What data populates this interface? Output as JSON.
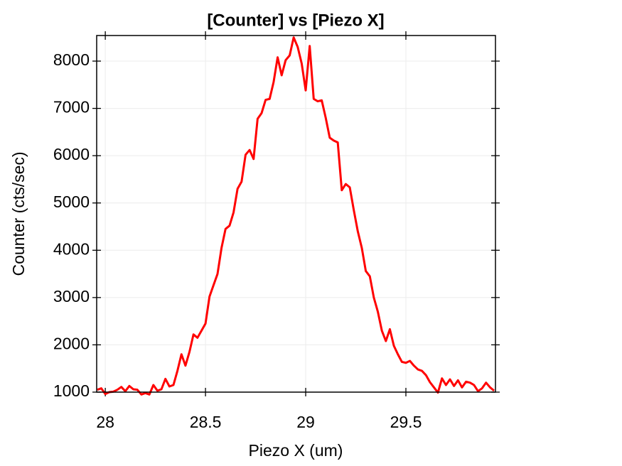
{
  "chart_data": {
    "type": "line",
    "title": "[Counter] vs [Piezo X]",
    "xlabel": "Piezo X (um)",
    "ylabel": "Counter (cts/sec)",
    "x": [
      27.96,
      27.98,
      28.0,
      28.02,
      28.04,
      28.06,
      28.08,
      28.1,
      28.12,
      28.14,
      28.16,
      28.18,
      28.2,
      28.22,
      28.24,
      28.26,
      28.28,
      28.3,
      28.32,
      28.34,
      28.36,
      28.38,
      28.4,
      28.42,
      28.44,
      28.46,
      28.48,
      28.5,
      28.52,
      28.54,
      28.56,
      28.58,
      28.6,
      28.62,
      28.64,
      28.66,
      28.68,
      28.7,
      28.72,
      28.74,
      28.76,
      28.78,
      28.8,
      28.82,
      28.84,
      28.86,
      28.88,
      28.9,
      28.92,
      28.94,
      28.96,
      28.98,
      29.0,
      29.02,
      29.04,
      29.06,
      29.08,
      29.1,
      29.12,
      29.14,
      29.16,
      29.18,
      29.2,
      29.22,
      29.24,
      29.26,
      29.28,
      29.3,
      29.32,
      29.34,
      29.36,
      29.38,
      29.4,
      29.42,
      29.44,
      29.46,
      29.48,
      29.5,
      29.52,
      29.54,
      29.56,
      29.58,
      29.6,
      29.62,
      29.64,
      29.66,
      29.68,
      29.7,
      29.72,
      29.74,
      29.76,
      29.78,
      29.8,
      29.82,
      29.84,
      29.86,
      29.88,
      29.9,
      29.92,
      29.94
    ],
    "values": [
      1050,
      1080,
      960,
      1000,
      1010,
      1050,
      1110,
      1020,
      1130,
      1060,
      1050,
      950,
      980,
      950,
      1150,
      1030,
      1060,
      1280,
      1120,
      1150,
      1450,
      1800,
      1560,
      1850,
      2220,
      2150,
      2300,
      2450,
      3020,
      3260,
      3500,
      4050,
      4450,
      4520,
      4800,
      5300,
      5450,
      6020,
      6120,
      5930,
      6780,
      6900,
      7180,
      7200,
      7560,
      8080,
      7700,
      8020,
      8120,
      8500,
      8300,
      7950,
      7380,
      8320,
      7200,
      7150,
      7170,
      6800,
      6380,
      6320,
      6280,
      5270,
      5400,
      5330,
      4850,
      4400,
      4050,
      3560,
      3450,
      3000,
      2700,
      2300,
      2080,
      2330,
      1980,
      1800,
      1640,
      1620,
      1660,
      1560,
      1480,
      1450,
      1360,
      1210,
      1100,
      990,
      1290,
      1150,
      1270,
      1130,
      1250,
      1100,
      1220,
      1200,
      1150,
      1020,
      1080,
      1200,
      1100,
      1030
    ],
    "color": "#ff0000",
    "xlim": [
      27.957,
      29.947
    ],
    "ylim": [
      1000,
      8541
    ],
    "xticks": [
      28,
      28.5,
      29,
      29.5
    ],
    "yticks": [
      1000,
      2000,
      3000,
      4000,
      5000,
      6000,
      7000,
      8000
    ],
    "grid": true
  }
}
